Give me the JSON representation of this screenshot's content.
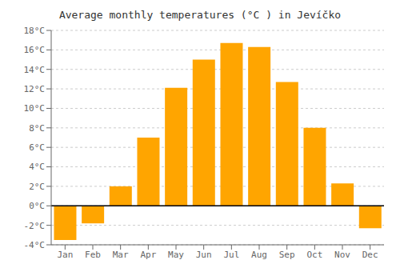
{
  "chart_data": {
    "type": "bar",
    "title": "Average monthly temperatures (°C ) in Jevíčko",
    "categories": [
      "Jan",
      "Feb",
      "Mar",
      "Apr",
      "May",
      "Jun",
      "Jul",
      "Aug",
      "Sep",
      "Oct",
      "Nov",
      "Dec"
    ],
    "values": [
      -3.5,
      -1.8,
      2.0,
      7.0,
      12.1,
      15.0,
      16.7,
      16.3,
      12.7,
      8.0,
      2.3,
      -2.3
    ],
    "color": "#FFA500",
    "ylim": [
      -4,
      18
    ],
    "yticks": [
      {
        "value": -4,
        "label": "-4°C"
      },
      {
        "value": -2,
        "label": "-2°C"
      },
      {
        "value": 0,
        "label": "0°C"
      },
      {
        "value": 2,
        "label": "2°C"
      },
      {
        "value": 4,
        "label": "4°C"
      },
      {
        "value": 6,
        "label": "6°C"
      },
      {
        "value": 8,
        "label": "8°C"
      },
      {
        "value": 10,
        "label": "10°C"
      },
      {
        "value": 12,
        "label": "12°C"
      },
      {
        "value": 14,
        "label": "14°C"
      },
      {
        "value": 16,
        "label": "16°C"
      },
      {
        "value": 18,
        "label": "18°C"
      }
    ],
    "grid": true
  }
}
